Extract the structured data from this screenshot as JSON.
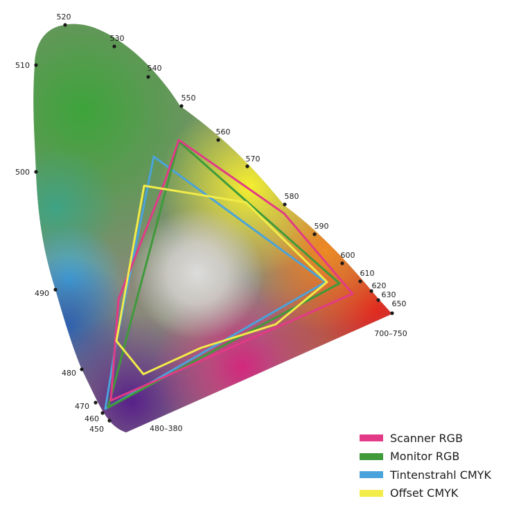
{
  "diagram": {
    "wavelength_labels": [
      "520",
      "530",
      "510",
      "540",
      "550",
      "560",
      "570",
      "500",
      "580",
      "590",
      "600",
      "610",
      "620",
      "630",
      "650",
      "700–750",
      "490",
      "480",
      "470",
      "460",
      "450",
      "480–380"
    ]
  },
  "legend": {
    "items": [
      {
        "label": "Scanner RGB",
        "color": "#e23a86"
      },
      {
        "label": "Monitor RGB",
        "color": "#3f9a3a"
      },
      {
        "label": "Tintenstrahl CMYK",
        "color": "#4aa3da"
      },
      {
        "label": "Offset CMYK",
        "color": "#f2ec4a"
      }
    ]
  }
}
